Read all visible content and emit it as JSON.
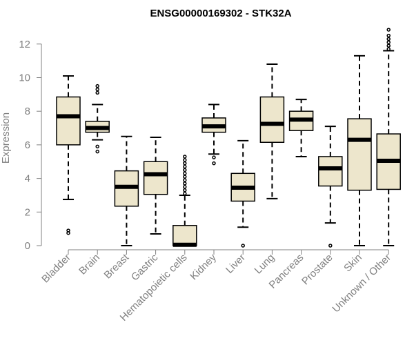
{
  "chart_data": {
    "type": "boxplot",
    "title": "ENSG00000169302 - STK32A",
    "ylabel": "Expression",
    "xlabel": "",
    "ylim": [
      0,
      12.7
    ],
    "yticks": [
      0,
      2,
      4,
      6,
      8,
      10,
      12
    ],
    "categories": [
      "Bladder",
      "Brain",
      "Breast",
      "Gastric",
      "Hematopoietic cells",
      "Kidney",
      "Liver",
      "Lung",
      "Pancreas",
      "Prostate",
      "Skin",
      "Unknown / Other"
    ],
    "boxes": [
      {
        "name": "Bladder",
        "whisker_low": 2.75,
        "q1": 6.0,
        "median": 7.7,
        "q3": 8.85,
        "whisker_high": 10.1,
        "outliers": [
          0.75,
          0.9
        ]
      },
      {
        "name": "Brain",
        "whisker_low": 6.3,
        "q1": 6.75,
        "median": 7.0,
        "q3": 7.4,
        "whisker_high": 8.4,
        "outliers": [
          5.6,
          5.9,
          9.1,
          9.3,
          9.5
        ]
      },
      {
        "name": "Breast",
        "whisker_low": 0.0,
        "q1": 2.35,
        "median": 3.5,
        "q3": 4.45,
        "whisker_high": 6.5,
        "outliers": []
      },
      {
        "name": "Gastric",
        "whisker_low": 0.7,
        "q1": 3.05,
        "median": 4.25,
        "q3": 5.0,
        "whisker_high": 6.45,
        "outliers": []
      },
      {
        "name": "Hematopoietic cells",
        "whisker_low": 0.0,
        "q1": 0.0,
        "median": 0.05,
        "q3": 1.2,
        "whisker_high": 3.0,
        "outliers": [
          3.1,
          3.3,
          3.5,
          3.7,
          3.9,
          4.1,
          4.3,
          4.5,
          4.7,
          4.9,
          5.1,
          5.3
        ]
      },
      {
        "name": "Kidney",
        "whisker_low": 5.45,
        "q1": 6.75,
        "median": 7.1,
        "q3": 7.6,
        "whisker_high": 8.4,
        "outliers": [
          4.9,
          5.25
        ]
      },
      {
        "name": "Liver",
        "whisker_low": 1.1,
        "q1": 2.65,
        "median": 3.45,
        "q3": 4.3,
        "whisker_high": 6.25,
        "outliers": [
          0.0
        ]
      },
      {
        "name": "Lung",
        "whisker_low": 2.8,
        "q1": 6.15,
        "median": 7.25,
        "q3": 8.85,
        "whisker_high": 10.8,
        "outliers": []
      },
      {
        "name": "Pancreas",
        "whisker_low": 5.3,
        "q1": 6.85,
        "median": 7.5,
        "q3": 8.0,
        "whisker_high": 8.7,
        "outliers": []
      },
      {
        "name": "Prostate",
        "whisker_low": 1.35,
        "q1": 3.55,
        "median": 4.6,
        "q3": 5.3,
        "whisker_high": 7.1,
        "outliers": [
          0.0
        ]
      },
      {
        "name": "Skin",
        "whisker_low": 0.0,
        "q1": 3.3,
        "median": 6.3,
        "q3": 7.55,
        "whisker_high": 11.3,
        "outliers": []
      },
      {
        "name": "Unknown / Other",
        "whisker_low": 0.0,
        "q1": 3.35,
        "median": 5.05,
        "q3": 6.65,
        "whisker_high": 11.6,
        "outliers": [
          11.7,
          11.9,
          12.1,
          12.3,
          12.5,
          12.85
        ]
      }
    ],
    "box_fill": "#ede6cc",
    "box_stroke": "#000000",
    "axis_color": "#808080",
    "grid": false,
    "legend": "none"
  }
}
